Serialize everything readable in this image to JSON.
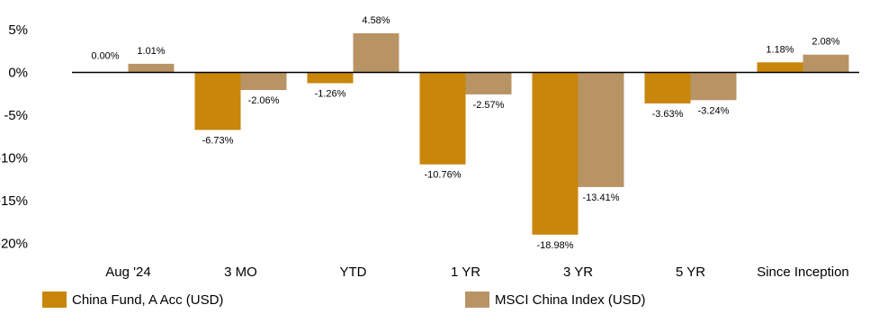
{
  "chart_data": {
    "type": "bar",
    "categories": [
      "Aug '24",
      "3 MO",
      "YTD",
      "1 YR",
      "3 YR",
      "5 YR",
      "Since Inception"
    ],
    "series": [
      {
        "name": "China Fund, A Acc (USD)",
        "color": "#C8860A",
        "values": [
          0.0,
          -6.73,
          -1.26,
          -10.76,
          -18.98,
          -3.63,
          1.18
        ],
        "labels": [
          "0.00%",
          "-6.73%",
          "-1.26%",
          "-10.76%",
          "-18.98%",
          "-3.63%",
          "1.18%"
        ]
      },
      {
        "name": "MSCI China Index (USD)",
        "color": "#B89465",
        "values": [
          1.01,
          -2.06,
          4.58,
          -2.57,
          -13.41,
          -3.24,
          2.08
        ],
        "labels": [
          "1.01%",
          "-2.06%",
          "4.58%",
          "-2.57%",
          "-13.41%",
          "-3.24%",
          "2.08%"
        ]
      }
    ],
    "y_ticks": [
      5,
      0,
      -5,
      -10,
      -15,
      -20
    ],
    "y_tick_labels": [
      "5%",
      "0%",
      "-5%",
      "-10%",
      "-15%",
      "-20%"
    ],
    "ylim": [
      -20,
      5
    ],
    "grid": false,
    "legend_position": "bottom"
  }
}
